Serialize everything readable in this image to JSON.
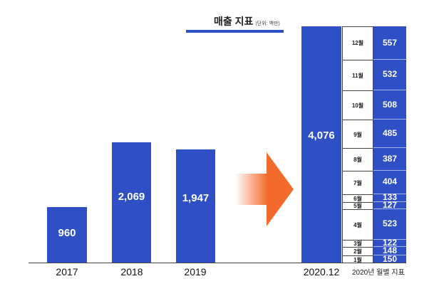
{
  "chart_data": {
    "type": "bar",
    "title": "매출 지표",
    "unit_note": "(단위: 백만)",
    "categories": [
      "2017",
      "2018",
      "2019",
      "2020.12"
    ],
    "values": [
      960,
      2069,
      1947,
      4076
    ],
    "value_labels": [
      "960",
      "2,069",
      "1,947",
      "4,076"
    ],
    "ylim": [
      0,
      4076
    ],
    "monthly": {
      "caption": "2020년 월별 지표",
      "months": [
        "1월",
        "2월",
        "3월",
        "4월",
        "5월",
        "6월",
        "7월",
        "8월",
        "9월",
        "10월",
        "11월",
        "12월"
      ],
      "values": [
        150,
        148,
        122,
        523,
        127,
        133,
        404,
        387,
        485,
        508,
        532,
        557
      ]
    },
    "colors": {
      "bar": "#2f4fc4",
      "arrow": "#f26b2c",
      "text": "#111111"
    }
  }
}
